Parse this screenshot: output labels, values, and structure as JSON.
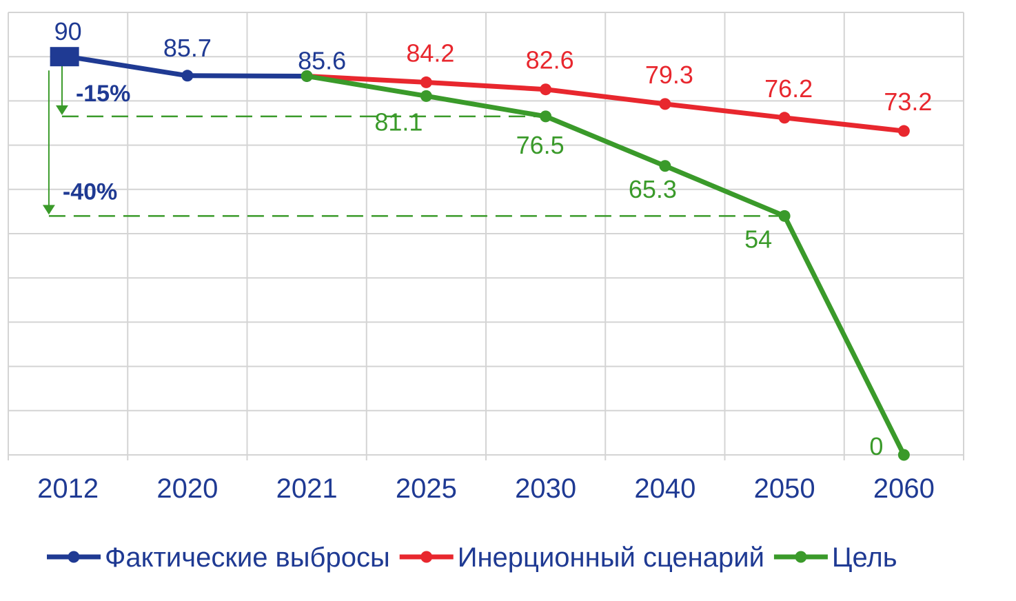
{
  "chart_data": {
    "type": "line",
    "categories": [
      "2012",
      "2020",
      "2021",
      "2025",
      "2030",
      "2040",
      "2050",
      "2060"
    ],
    "ylim": [
      0,
      100
    ],
    "grid": true,
    "legend_position": "bottom",
    "series": [
      {
        "name": "Фактические выбросы",
        "color": "#1f3a93",
        "values": [
          90,
          85.7,
          85.6,
          null,
          null,
          null,
          null,
          null
        ],
        "labels": [
          "90",
          "85.7",
          "85.6",
          "",
          "",
          "",
          "",
          ""
        ],
        "marker": "circle",
        "first_marker": "square"
      },
      {
        "name": "Инерционный сценарий",
        "color": "#e8272e",
        "values": [
          null,
          null,
          85.6,
          84.2,
          82.6,
          79.3,
          76.2,
          73.2
        ],
        "labels": [
          "",
          "",
          "",
          "84.2",
          "82.6",
          "79.3",
          "76.2",
          "73.2"
        ],
        "marker": "circle"
      },
      {
        "name": "Цель",
        "color": "#3a9a2a",
        "values": [
          null,
          null,
          85.6,
          81.1,
          76.5,
          65.3,
          54,
          0
        ],
        "labels": [
          "",
          "",
          "",
          "81.1",
          "76.5",
          "65.3",
          "54",
          "0"
        ],
        "marker": "circle"
      }
    ],
    "annotations": [
      {
        "text": "-15%",
        "from_value": 90,
        "to_value": 76.5,
        "target_category": "2030",
        "color": "#3a9a2a"
      },
      {
        "text": "-40%",
        "from_value": 90,
        "to_value": 54,
        "target_category": "2050",
        "color": "#3a9a2a"
      }
    ]
  }
}
